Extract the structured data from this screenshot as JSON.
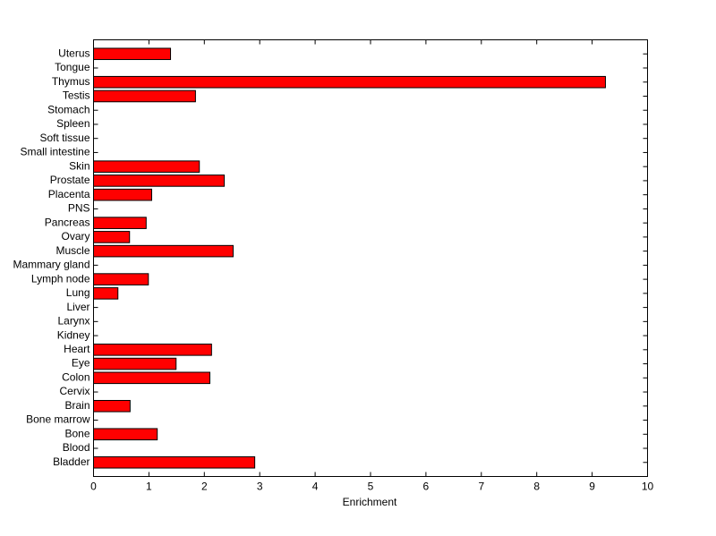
{
  "chart_data": {
    "type": "barh",
    "xlabel": "Enrichment",
    "categories": [
      "Uterus",
      "Tongue",
      "Thymus",
      "Testis",
      "Stomach",
      "Spleen",
      "Soft tissue",
      "Small intestine",
      "Skin",
      "Prostate",
      "Placenta",
      "PNS",
      "Pancreas",
      "Ovary",
      "Muscle",
      "Mammary gland",
      "Lymph node",
      "Lung",
      "Liver",
      "Larynx",
      "Kidney",
      "Heart",
      "Eye",
      "Colon",
      "Cervix",
      "Brain",
      "Bone marrow",
      "Bone",
      "Blood",
      "Bladder"
    ],
    "values": [
      1.39,
      0,
      9.24,
      1.84,
      0,
      0,
      0,
      0,
      1.91,
      2.36,
      1.05,
      0,
      0.95,
      0.65,
      2.52,
      0,
      0.99,
      0.44,
      0,
      0,
      0,
      2.13,
      1.49,
      2.1,
      0,
      0.66,
      0,
      1.15,
      0,
      2.91
    ],
    "color": "#ff0000",
    "xlim": [
      0,
      10
    ],
    "xticks": [
      0,
      1,
      2,
      3,
      4,
      5,
      6,
      7,
      8,
      9,
      10
    ]
  }
}
